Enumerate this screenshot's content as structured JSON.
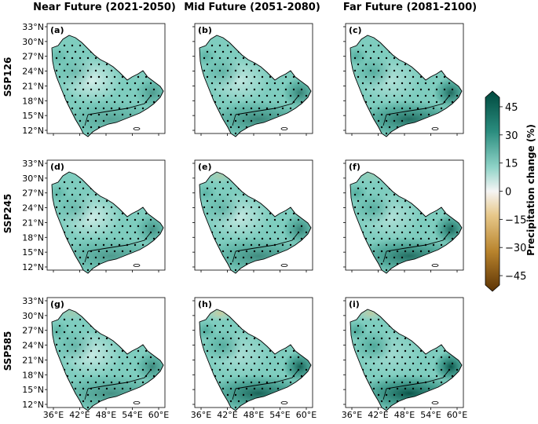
{
  "columns": [
    "Near Future (2021-2050)",
    "Mid Future (2051-2080)",
    "Far Future (2081-2100)"
  ],
  "rows": [
    "SSP126",
    "SSP245",
    "SSP585"
  ],
  "panel_labels": [
    "(a)",
    "(b)",
    "(c)",
    "(d)",
    "(e)",
    "(f)",
    "(g)",
    "(h)",
    "(i)"
  ],
  "y_ticks": [
    "33°N",
    "30°N",
    "27°N",
    "24°N",
    "21°N",
    "18°N",
    "15°N",
    "12°N"
  ],
  "x_ticks": [
    "36°E",
    "42°E",
    "48°E",
    "54°E",
    "60°E"
  ],
  "colorbar": {
    "label": "Precipitation change (%)",
    "ticks": [
      "45",
      "30",
      "15",
      "0",
      "−15",
      "−30",
      "−45"
    ],
    "range": [
      -50,
      50
    ],
    "colors": {
      "strong_wet": "#00493e",
      "mid_wet": "#3f9e8f",
      "light_wet": "#8fd3c7",
      "neutral": "#f5f5f5",
      "light_dry": "#e7c88a",
      "mid_dry": "#b9842d",
      "strong_dry": "#5c3304"
    }
  }
}
